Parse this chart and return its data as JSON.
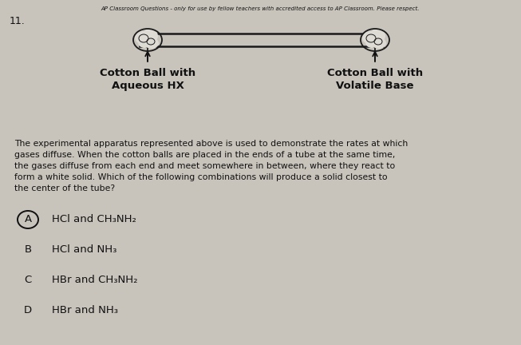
{
  "header": "AP Classroom Questions - only for use by fellow teachers with accredited access to AP Classroom. Please respect.",
  "question_number": "11.",
  "label_left": "Cotton Ball with\nAqueous HX",
  "label_right": "Cotton Ball with\nVolatile Base",
  "body_text": "The experimental apparatus represented above is used to demonstrate the rates at which\ngases diffuse. When the cotton balls are placed in the ends of a tube at the same time,\nthe gases diffuse from each end and meet somewhere in between, where they react to\nform a white solid. Which of the following combinations will produce a solid closest to\nthe center of the tube?",
  "choices": [
    {
      "letter": "A",
      "text": "HCl and CH₃NH₂",
      "circled": true
    },
    {
      "letter": "B",
      "text": "HCl and NH₃",
      "circled": false
    },
    {
      "letter": "C",
      "text": "HBr and CH₃NH₂",
      "circled": false
    },
    {
      "letter": "D",
      "text": "HBr and NH₃",
      "circled": false
    }
  ],
  "bg_color": "#c8c4bc",
  "text_color": "#111111",
  "tube_color": "#1a1a1a",
  "tube_fill": "#dedad4",
  "cotton_fill": "#dedad4"
}
